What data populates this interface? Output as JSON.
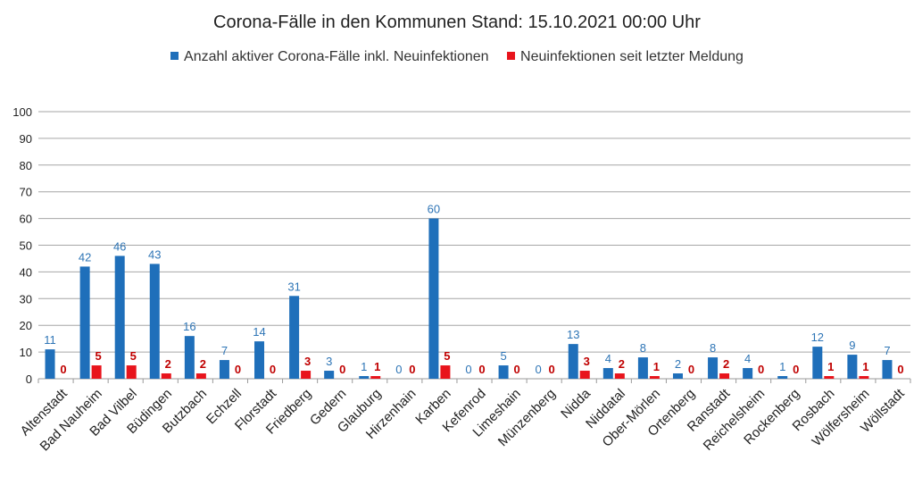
{
  "chart_data": {
    "type": "bar",
    "title": "Corona-Fälle in den Kommunen Stand: 15.10.2021 00:00 Uhr",
    "categories": [
      "Altenstadt",
      "Bad Nauheim",
      "Bad Vilbel",
      "Büdingen",
      "Butzbach",
      "Echzell",
      "Florstadt",
      "Friedberg",
      "Gedern",
      "Glauburg",
      "Hirzenhain",
      "Karben",
      "Kefenrod",
      "Limeshain",
      "Münzenberg",
      "Nidda",
      "Niddatal",
      "Ober-Mörlen",
      "Ortenberg",
      "Ranstadt",
      "Reichelsheim",
      "Rockenberg",
      "Rosbach",
      "Wölfersheim",
      "Wöllstadt"
    ],
    "series": [
      {
        "name": "Anzahl aktiver Corona-Fälle inkl. Neuinfektionen",
        "color": "#1f6fba",
        "values": [
          11,
          42,
          46,
          43,
          16,
          7,
          14,
          31,
          3,
          1,
          0,
          60,
          0,
          5,
          0,
          13,
          4,
          8,
          2,
          8,
          4,
          1,
          12,
          9,
          7
        ]
      },
      {
        "name": "Neuinfektionen seit letzter Meldung",
        "color": "#e8141c",
        "values": [
          0,
          5,
          5,
          2,
          2,
          0,
          0,
          3,
          0,
          1,
          0,
          5,
          0,
          0,
          0,
          3,
          2,
          1,
          0,
          2,
          0,
          0,
          1,
          1,
          0
        ]
      }
    ],
    "ylim": [
      0,
      100
    ],
    "yticks": [
      0,
      10,
      20,
      30,
      40,
      50,
      60,
      70,
      80,
      90,
      100
    ],
    "grid": true,
    "legend": "top"
  }
}
